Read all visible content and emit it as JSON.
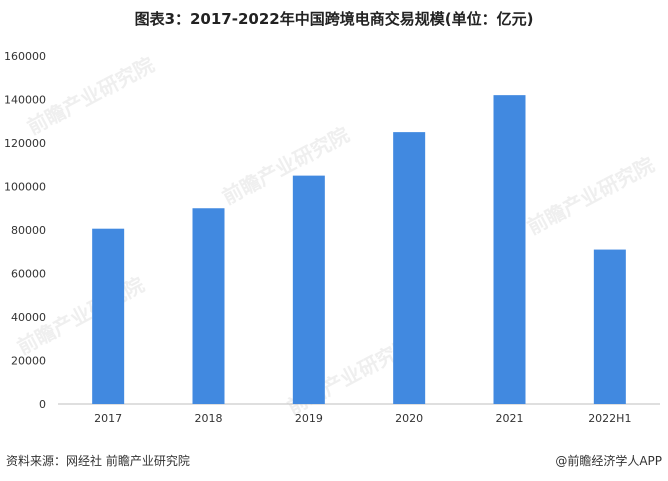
{
  "chart_data": {
    "type": "bar",
    "title": "图表3：2017-2022年中国跨境电商交易规模(单位：亿元)",
    "categories": [
      "2017",
      "2018",
      "2019",
      "2020",
      "2021",
      "2022H1"
    ],
    "values": [
      80600,
      90000,
      105000,
      125000,
      142000,
      71000
    ],
    "ylim": [
      0,
      160000
    ],
    "yticks": [
      0,
      20000,
      40000,
      60000,
      80000,
      100000,
      120000,
      140000,
      160000
    ],
    "bar_color": "#4189e0",
    "grid": false,
    "legend": "none"
  },
  "footer": {
    "source": "资料来源：网经社 前瞻产业研究院",
    "brand": "@前瞻经济学人APP"
  },
  "watermark": "前瞻产业研究院"
}
